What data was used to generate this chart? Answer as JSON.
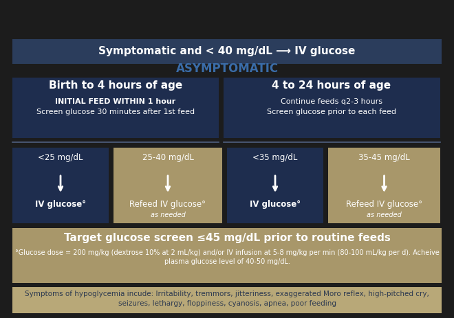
{
  "fig_w": 6.6,
  "fig_h": 4.63,
  "dpi": 100,
  "bg_color": "#1c1c1c",
  "navy": "#1e2d4e",
  "tan": "#a8976a",
  "tan_light": "#c4b48a",
  "top_bar_color": "#2b3d5c",
  "asym_color": "#3a6ca8",
  "white": "#ffffff",
  "symp_bg": "#b8a878",
  "symptomatic_text": "Symptomatic and < 40 mg/dL ⟶ IV glucose",
  "asymptomatic_text": "ASYMPTOMATIC",
  "box1_title": "Birth to 4 hours of age",
  "box1_line1": "INITIAL FEED WITHIN 1 hour",
  "box1_line2": "Screen glucose 30 minutes after 1st feed",
  "box2_title": "4 to 24 hours of age",
  "box2_line1": "Continue feeds q2-3 hours",
  "box2_line2": "Screen glucose prior to each feed",
  "cell_ranges": [
    "<25 mg/dL",
    "25-40 mg/dL",
    "<35 mg/dL",
    "35-45 mg/dL"
  ],
  "cell_actions": [
    "IV glucose°",
    "Refeed IV glucose°",
    "IV glucose°",
    "Refeed IV glucose°"
  ],
  "cell_subs": [
    null,
    "as needed",
    null,
    "as needed"
  ],
  "cell_colors": [
    "navy",
    "tan",
    "navy",
    "tan"
  ],
  "target_text": "Target glucose screen ≤45 mg/dL prior to routine feeds",
  "footnote_line1": "°Glucose dose = 200 mg/kg (dextrose 10% at 2 mL/kg) and/or IV infusion at 5-8 mg/kg per min (80-100 mL/kg per d). Acheive",
  "footnote_line2": "plasma glucose level of 40-50 mg/dL.",
  "symptoms_line1": "Symptoms of hypoglycemia incude: Irritability, tremmors, jitteriness, exaggerated Moro reflex, high-pitched cry,",
  "symptoms_line2": "seizures, lethargy, floppiness, cyanosis, apnea, poor feeding"
}
